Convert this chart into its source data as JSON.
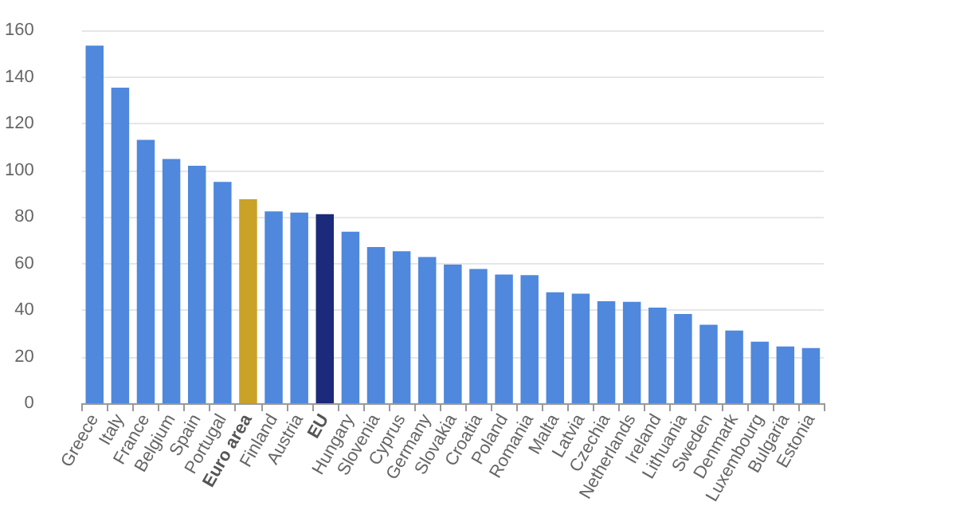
{
  "chart_data": {
    "type": "bar",
    "categories": [
      "Greece",
      "Italy",
      "France",
      "Belgium",
      "Spain",
      "Portugal",
      "Euro area",
      "Finland",
      "Austria",
      "EU",
      "Hungary",
      "Slovenia",
      "Cyprus",
      "Germany",
      "Slovakia",
      "Croatia",
      "Poland",
      "Romania",
      "Malta",
      "Latvia",
      "Czechia",
      "Netherlands",
      "Ireland",
      "Lithuania",
      "Sweden",
      "Denmark",
      "Luxembourg",
      "Bulgaria",
      "Estonia"
    ],
    "values": [
      153.4,
      135.4,
      113,
      104.8,
      101.9,
      95,
      87.5,
      82.3,
      81.8,
      81.1,
      73.6,
      67,
      65.2,
      62.7,
      59.5,
      57.6,
      55.2,
      55,
      47.6,
      47,
      43.8,
      43.5,
      41,
      38.3,
      33.7,
      31.2,
      26.4,
      24.4,
      23.7
    ],
    "colors": [
      "#4f88dd",
      "#4f88dd",
      "#4f88dd",
      "#4f88dd",
      "#4f88dd",
      "#4f88dd",
      "#c9a227",
      "#4f88dd",
      "#4f88dd",
      "#1b2a7a",
      "#4f88dd",
      "#4f88dd",
      "#4f88dd",
      "#4f88dd",
      "#4f88dd",
      "#4f88dd",
      "#4f88dd",
      "#4f88dd",
      "#4f88dd",
      "#4f88dd",
      "#4f88dd",
      "#4f88dd",
      "#4f88dd",
      "#4f88dd",
      "#4f88dd",
      "#4f88dd",
      "#4f88dd",
      "#4f88dd",
      "#4f88dd"
    ],
    "ylim": [
      0,
      160
    ],
    "yticks": [
      0,
      20,
      40,
      60,
      80,
      100,
      120,
      140,
      160
    ],
    "grid": "y"
  }
}
